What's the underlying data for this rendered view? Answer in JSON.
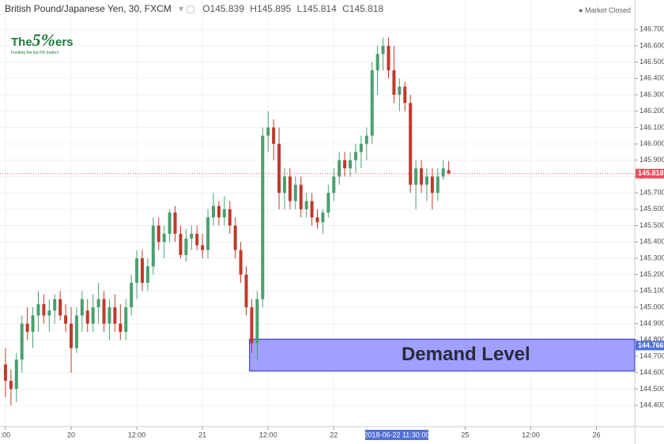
{
  "chart_data": {
    "type": "candlestick",
    "title": "British Pound/Japanese Yen, 30, FXCM",
    "ohlc": [
      {
        "label": "O",
        "value": 145.839
      },
      {
        "label": "H",
        "value": 145.895
      },
      {
        "label": "L",
        "value": 145.814
      },
      {
        "label": "C",
        "value": 145.818
      }
    ],
    "status": "Market Closed",
    "logo": {
      "text": [
        "The",
        "5%",
        "ers"
      ],
      "tagline": "Funding the top 5% traders"
    },
    "up_color": "#4a9f6e",
    "down_color": "#c0392b",
    "grid": true,
    "open": [
      144.65,
      144.55,
      144.5,
      144.68,
      144.9,
      144.85,
      144.95,
      145.02,
      144.95,
      144.98,
      145.05,
      144.95,
      144.9,
      144.75,
      144.95,
      144.98,
      144.9,
      145.0,
      145.05,
      144.9,
      145.0,
      144.9,
      144.85,
      145.0,
      145.15,
      145.3,
      145.15,
      145.25,
      145.5,
      145.4,
      145.45,
      145.58,
      145.45,
      145.32,
      145.42,
      145.45,
      145.38,
      145.35,
      145.55,
      145.62,
      145.55,
      145.6,
      145.5,
      145.35,
      145.2,
      145.0,
      144.78,
      145.05,
      146.05,
      146.1,
      146.0,
      145.7,
      145.8,
      145.65,
      145.75,
      145.6,
      145.65,
      145.55,
      145.52,
      145.58,
      145.7,
      145.8,
      145.9,
      145.85,
      145.9,
      145.95,
      146.0,
      146.05,
      146.45,
      146.55,
      146.6,
      146.45,
      146.3,
      146.35,
      146.25,
      145.75,
      145.85,
      145.75,
      145.8,
      145.7,
      145.8,
      145.839
    ],
    "high": [
      144.75,
      144.62,
      144.72,
      144.95,
      145.0,
      145.0,
      145.1,
      145.08,
      145.05,
      145.08,
      145.1,
      145.02,
      145.0,
      145.0,
      145.1,
      145.05,
      145.08,
      145.15,
      145.1,
      145.05,
      145.08,
      145.02,
      145.05,
      145.2,
      145.35,
      145.35,
      145.3,
      145.55,
      145.55,
      145.5,
      145.6,
      145.62,
      145.5,
      145.48,
      145.5,
      145.5,
      145.45,
      145.6,
      145.7,
      145.65,
      145.68,
      145.65,
      145.55,
      145.4,
      145.25,
      145.05,
      145.1,
      146.1,
      146.2,
      146.15,
      146.1,
      145.85,
      145.85,
      145.8,
      145.8,
      145.7,
      145.7,
      145.6,
      145.6,
      145.75,
      145.85,
      145.95,
      145.95,
      145.95,
      146.0,
      146.05,
      146.1,
      146.5,
      146.6,
      146.65,
      146.65,
      146.6,
      146.4,
      146.38,
      146.3,
      145.9,
      145.9,
      145.85,
      145.85,
      145.85,
      145.9,
      145.895
    ],
    "low": [
      144.45,
      144.4,
      144.42,
      144.6,
      144.8,
      144.75,
      144.85,
      144.9,
      144.85,
      144.9,
      144.92,
      144.85,
      144.6,
      144.72,
      144.85,
      144.85,
      144.85,
      144.9,
      144.85,
      144.8,
      144.85,
      144.8,
      144.8,
      144.95,
      145.05,
      145.1,
      145.1,
      145.2,
      145.35,
      145.3,
      145.4,
      145.4,
      145.3,
      145.28,
      145.35,
      145.35,
      145.3,
      145.3,
      145.5,
      145.5,
      145.5,
      145.45,
      145.3,
      145.15,
      144.95,
      144.72,
      144.68,
      145.0,
      145.95,
      145.9,
      145.6,
      145.6,
      145.6,
      145.6,
      145.55,
      145.55,
      145.5,
      145.48,
      145.45,
      145.55,
      145.65,
      145.75,
      145.8,
      145.8,
      145.82,
      145.85,
      145.9,
      146.0,
      146.3,
      146.45,
      146.4,
      146.25,
      146.2,
      146.2,
      145.7,
      145.6,
      145.7,
      145.65,
      145.6,
      145.65,
      145.78,
      145.814
    ],
    "close": [
      144.55,
      144.5,
      144.68,
      144.9,
      144.85,
      144.95,
      145.02,
      144.95,
      144.98,
      145.05,
      144.95,
      144.9,
      144.75,
      144.95,
      145.05,
      144.9,
      145.0,
      145.05,
      144.9,
      145.0,
      144.9,
      144.85,
      145.0,
      145.15,
      145.3,
      145.15,
      145.25,
      145.5,
      145.4,
      145.45,
      145.58,
      145.45,
      145.32,
      145.42,
      145.45,
      145.38,
      145.35,
      145.55,
      145.62,
      145.55,
      145.6,
      145.5,
      145.35,
      145.2,
      145.0,
      144.78,
      145.05,
      146.05,
      146.1,
      146.0,
      145.7,
      145.8,
      145.65,
      145.75,
      145.6,
      145.65,
      145.55,
      145.52,
      145.58,
      145.7,
      145.8,
      145.9,
      145.85,
      145.9,
      145.95,
      146.0,
      146.05,
      146.45,
      146.55,
      146.6,
      146.45,
      146.3,
      146.35,
      146.25,
      145.75,
      145.85,
      145.75,
      145.8,
      145.7,
      145.8,
      145.85,
      145.818
    ],
    "xlim": [
      -1,
      115
    ],
    "xticks": [
      {
        "value": 0,
        "label": ":00"
      },
      {
        "value": 12,
        "label": "20"
      },
      {
        "value": 24,
        "label": "12:00"
      },
      {
        "value": 36,
        "label": "21"
      },
      {
        "value": 48,
        "label": "12:00"
      },
      {
        "value": 60,
        "label": "22"
      },
      {
        "value": 84,
        "label": "25"
      },
      {
        "value": 96,
        "label": "12:00"
      },
      {
        "value": 108,
        "label": "26"
      }
    ],
    "cursor": {
      "value": 71.5,
      "label": "2018-06-22 11:30:00"
    },
    "ylim": [
      144.27,
      146.88
    ],
    "yticks": [
      {
        "value": 144.4,
        "label": "144.400"
      },
      {
        "value": 144.5,
        "label": "144.500"
      },
      {
        "value": 144.6,
        "label": "144.600"
      },
      {
        "value": 144.7,
        "label": "144.700"
      },
      {
        "value": 144.8,
        "label": "144.800"
      },
      {
        "value": 144.9,
        "label": "144.900"
      },
      {
        "value": 145.0,
        "label": "145.000"
      },
      {
        "value": 145.1,
        "label": "145.100"
      },
      {
        "value": 145.2,
        "label": "145.200"
      },
      {
        "value": 145.3,
        "label": "145.300"
      },
      {
        "value": 145.4,
        "label": "145.400"
      },
      {
        "value": 145.5,
        "label": "145.500"
      },
      {
        "value": 145.6,
        "label": "145.600"
      },
      {
        "value": 145.7,
        "label": "145.700"
      },
      {
        "value": 145.8,
        "label": "145.800"
      },
      {
        "value": 145.9,
        "label": "145.900"
      },
      {
        "value": 146.0,
        "label": "146.000"
      },
      {
        "value": 146.1,
        "label": "146.100"
      },
      {
        "value": 146.2,
        "label": "146.200"
      },
      {
        "value": 146.3,
        "label": "146.300"
      },
      {
        "value": 146.4,
        "label": "146.400"
      },
      {
        "value": 146.5,
        "label": "146.500"
      },
      {
        "value": 146.6,
        "label": "146.600"
      },
      {
        "value": 146.7,
        "label": "146.700"
      }
    ],
    "last_price": {
      "value": 145.818,
      "color": "#eb4d5c"
    },
    "zone": {
      "label": "Demand Level",
      "start": 44.6,
      "low": 144.61,
      "high": 144.805,
      "marker": {
        "value": 144.766,
        "label": "144.766"
      },
      "color": "#8080ff"
    }
  }
}
